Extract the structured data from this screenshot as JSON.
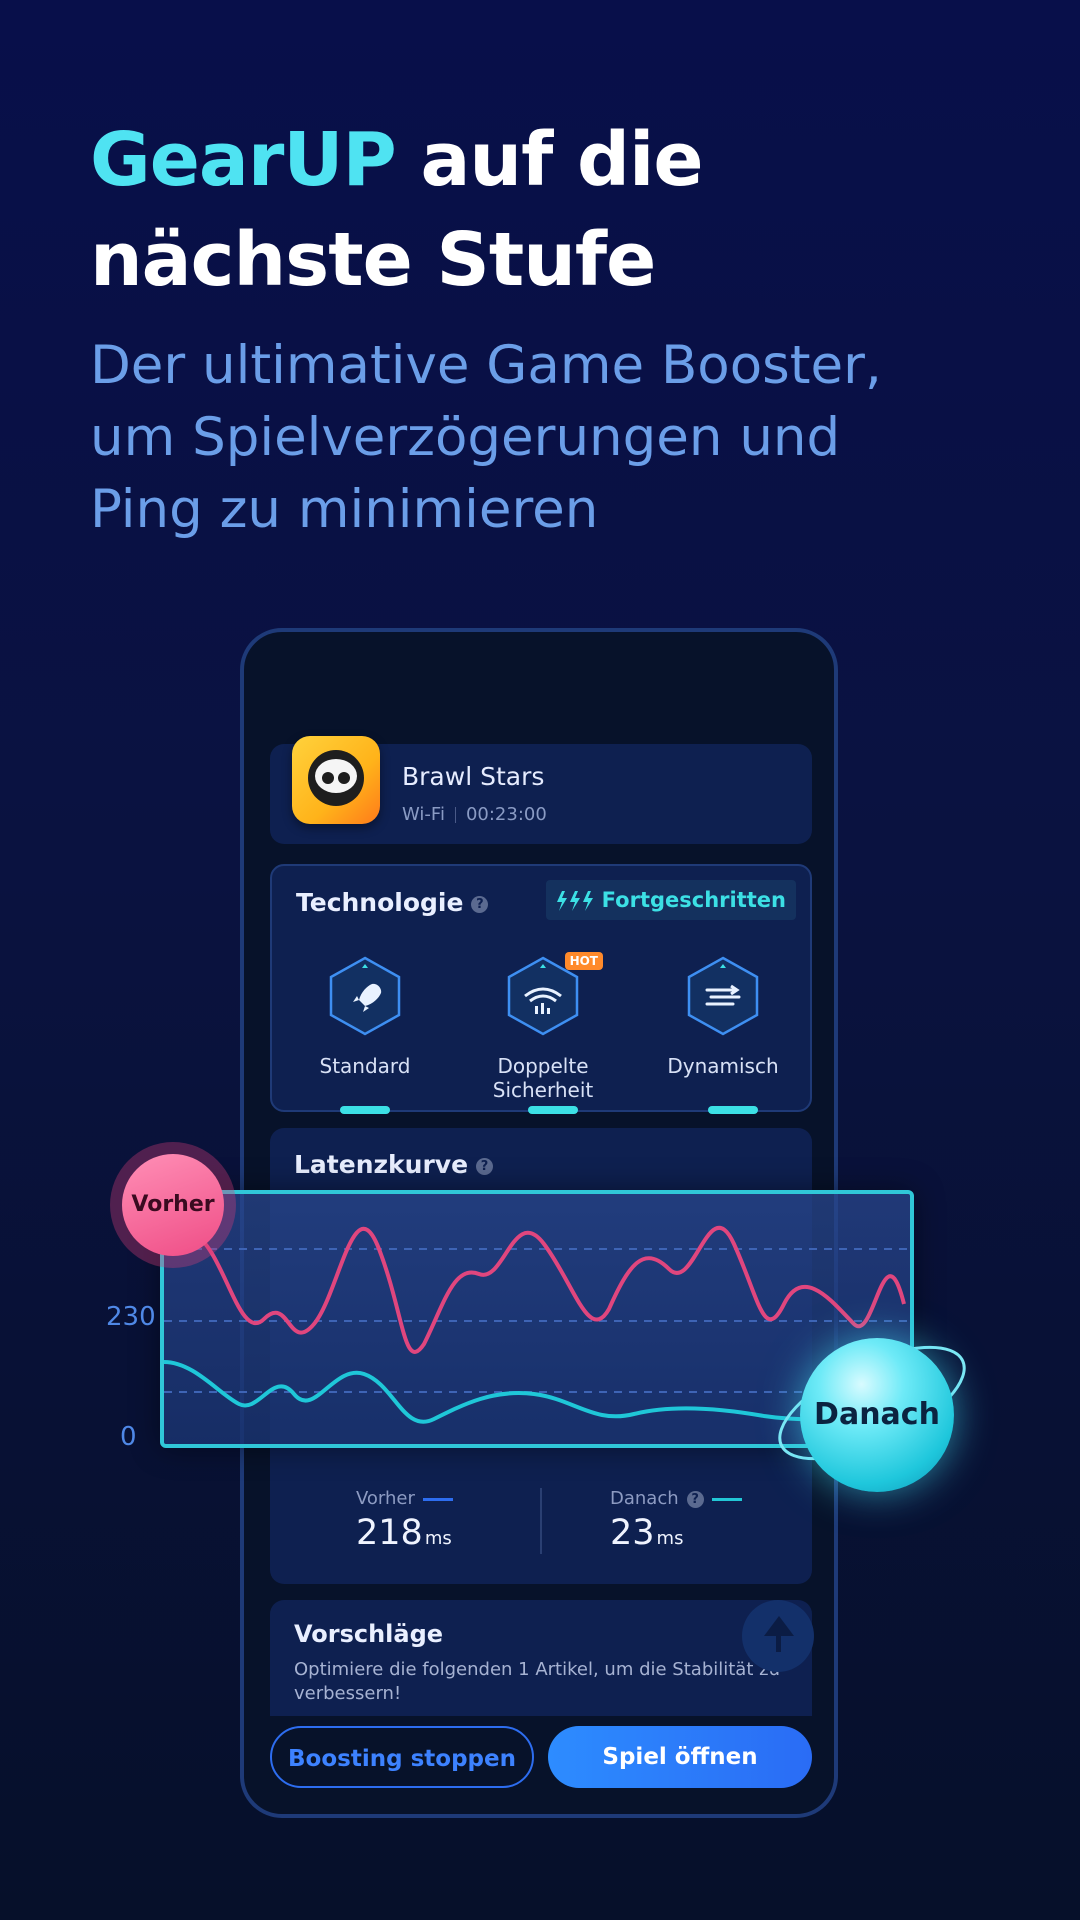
{
  "headline": {
    "accent": "GearUP",
    "rest_line1": " auf die",
    "line2": "nächste Stufe"
  },
  "subtitle": {
    "line1": "Der ultimative Game Booster,",
    "line2": "um Spielverzögerungen und",
    "line3": "Ping zu minimieren"
  },
  "game": {
    "title": "Brawl Stars",
    "network": "Wi-Fi",
    "timer": "00:23:00"
  },
  "technology": {
    "title": "Technologie",
    "help": "?",
    "mode_badge": "Fortgeschritten",
    "items": [
      {
        "label": "Standard",
        "icon": "rocket-icon"
      },
      {
        "label": "Doppelte Sicherheit",
        "icon": "wifi-shield-icon",
        "badge": "HOT"
      },
      {
        "label": "Dynamisch",
        "icon": "flow-icon"
      }
    ]
  },
  "latency": {
    "title": "Latenzkurve",
    "help": "?",
    "y_ticks": [
      "230",
      "0"
    ],
    "before_tag": "Vorher",
    "after_tag": "Danach",
    "stats": {
      "before_label": "Vorher",
      "before_value": "218",
      "after_label": "Danach",
      "after_value": "23",
      "unit": "ms"
    },
    "colors": {
      "before": "#e0467e",
      "after": "#22c7d6"
    }
  },
  "suggestions": {
    "title": "Vorschläge",
    "text": "Optimiere die folgenden 1 Artikel, um die Stabilität zu verbessern!"
  },
  "buttons": {
    "stop": "Boosting stoppen",
    "open": "Spiel öffnen"
  }
}
